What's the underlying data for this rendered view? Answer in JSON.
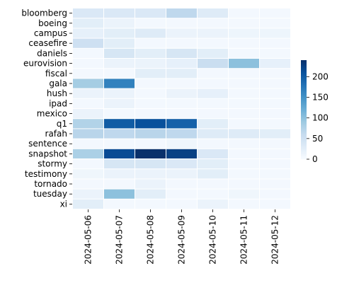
{
  "chart_data": {
    "type": "heatmap",
    "title": "",
    "xlabel": "",
    "ylabel": "",
    "x_categories": [
      "2024-05-06",
      "2024-05-07",
      "2024-05-08",
      "2024-05-09",
      "2024-05-10",
      "2024-05-11",
      "2024-05-12"
    ],
    "y_categories": [
      "bloomberg",
      "boeing",
      "campus",
      "ceasefire",
      "daniels",
      "eurovision",
      "fiscal",
      "gala",
      "hush",
      "ipad",
      "mexico",
      "q1",
      "rafah",
      "sentence",
      "snapshot",
      "stormy",
      "testimony",
      "tornado",
      "tuesday",
      "xi"
    ],
    "values": [
      [
        35,
        35,
        35,
        65,
        30,
        5,
        5
      ],
      [
        25,
        15,
        5,
        5,
        5,
        5,
        5
      ],
      [
        20,
        25,
        30,
        15,
        15,
        12,
        12
      ],
      [
        50,
        25,
        5,
        5,
        5,
        5,
        5
      ],
      [
        5,
        40,
        25,
        40,
        25,
        5,
        5
      ],
      [
        5,
        15,
        15,
        20,
        55,
        100,
        20
      ],
      [
        5,
        5,
        25,
        25,
        5,
        5,
        5
      ],
      [
        85,
        165,
        5,
        5,
        5,
        5,
        5
      ],
      [
        15,
        15,
        5,
        15,
        20,
        5,
        5
      ],
      [
        5,
        15,
        5,
        5,
        5,
        5,
        5
      ],
      [
        15,
        5,
        5,
        5,
        5,
        5,
        5
      ],
      [
        75,
        200,
        210,
        195,
        25,
        5,
        5
      ],
      [
        70,
        65,
        70,
        65,
        30,
        30,
        25
      ],
      [
        5,
        5,
        5,
        10,
        5,
        5,
        5
      ],
      [
        80,
        215,
        240,
        225,
        35,
        5,
        5
      ],
      [
        5,
        40,
        40,
        35,
        25,
        5,
        5
      ],
      [
        10,
        15,
        15,
        15,
        25,
        5,
        5
      ],
      [
        5,
        5,
        15,
        5,
        5,
        5,
        5
      ],
      [
        15,
        100,
        25,
        5,
        5,
        10,
        5
      ],
      [
        25,
        5,
        5,
        5,
        15,
        5,
        5
      ]
    ],
    "colorbar": {
      "min": 0,
      "max": 240,
      "ticks": [
        0,
        50,
        100,
        150,
        200
      ],
      "colors": [
        "#f7fbff",
        "#deebf7",
        "#c6dbef",
        "#9ecae1",
        "#6baed6",
        "#4292c6",
        "#2171b5",
        "#08519c",
        "#08306b"
      ]
    },
    "grid": true,
    "legend": "right"
  }
}
